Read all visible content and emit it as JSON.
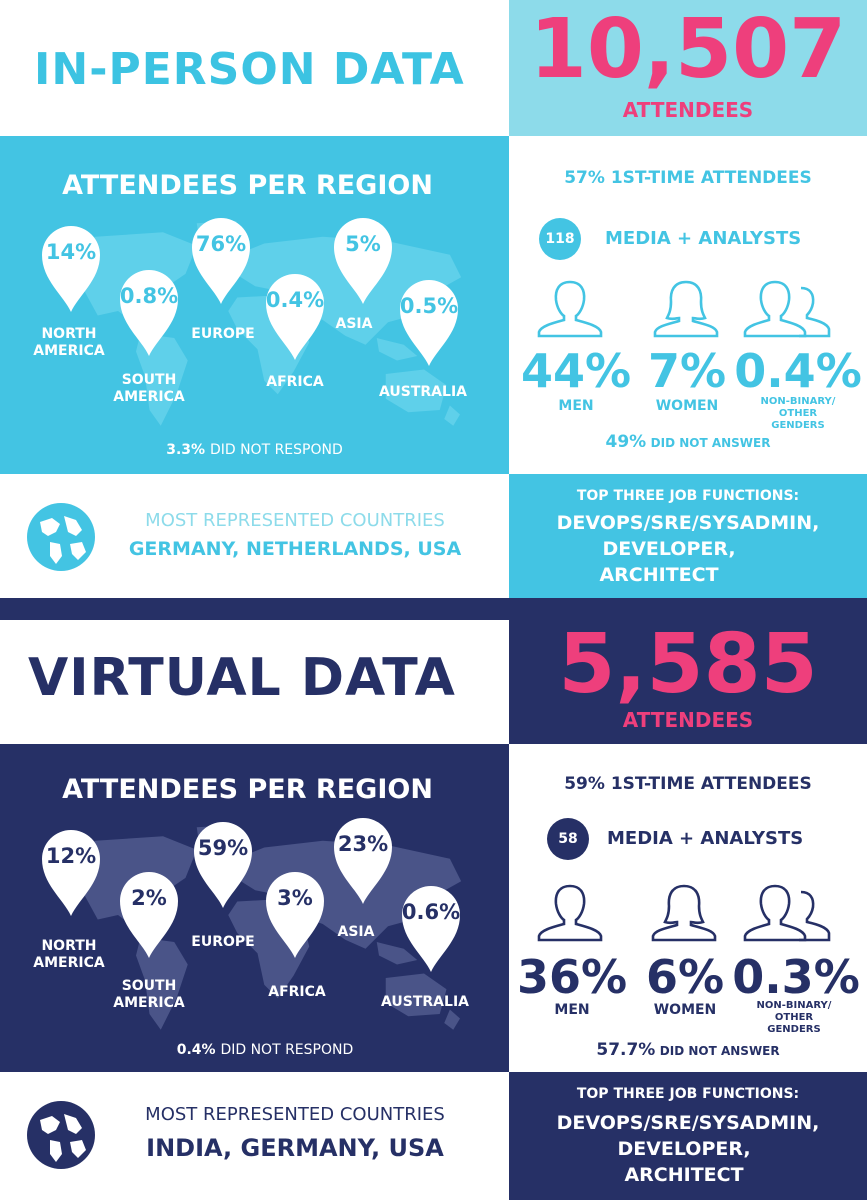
{
  "in_person": {
    "title": "IN-PERSON DATA",
    "total": "10,507",
    "total_label": "ATTENDEES",
    "region_title": "ATTENDEES PER REGION",
    "regions": [
      {
        "pct": "14%",
        "name": "NORTH AMERICA"
      },
      {
        "pct": "0.8%",
        "name": "SOUTH AMERICA"
      },
      {
        "pct": "76%",
        "name": "EUROPE"
      },
      {
        "pct": "0.4%",
        "name": "AFRICA"
      },
      {
        "pct": "5%",
        "name": "ASIA"
      },
      {
        "pct": "0.5%",
        "name": "AUSTRALIA"
      }
    ],
    "no_response_pct": "3.3%",
    "no_response_text": "DID NOT RESPOND",
    "first_time": "57% 1ST-TIME ATTENDEES",
    "media_count": "118",
    "media_label": "MEDIA + ANALYSTS",
    "genders": [
      {
        "pct": "44%",
        "label": "MEN"
      },
      {
        "pct": "7%",
        "label": "WOMEN"
      },
      {
        "pct": "0.4%",
        "label": "NON-BINARY/ OTHER GENDERS"
      }
    ],
    "no_answer_pct": "49%",
    "no_answer_text": "DID NOT ANSWER",
    "countries_heading": "MOST REPRESENTED COUNTRIES",
    "countries": "GERMANY, NETHERLANDS, USA",
    "jobs_heading": "TOP THREE JOB FUNCTIONS:",
    "jobs": [
      "DEVOPS/SRE/SYSADMIN,",
      "DEVELOPER,",
      "ARCHITECT"
    ]
  },
  "virtual": {
    "title": "VIRTUAL DATA",
    "total": "5,585",
    "total_label": "ATTENDEES",
    "region_title": "ATTENDEES PER REGION",
    "regions": [
      {
        "pct": "12%",
        "name": "NORTH AMERICA"
      },
      {
        "pct": "2%",
        "name": "SOUTH AMERICA"
      },
      {
        "pct": "59%",
        "name": "EUROPE"
      },
      {
        "pct": "3%",
        "name": "AFRICA"
      },
      {
        "pct": "23%",
        "name": "ASIA"
      },
      {
        "pct": "0.6%",
        "name": "AUSTRALIA"
      }
    ],
    "no_response_pct": "0.4%",
    "no_response_text": "DID NOT RESPOND",
    "first_time": "59% 1ST-TIME ATTENDEES",
    "media_count": "58",
    "media_label": "MEDIA + ANALYSTS",
    "genders": [
      {
        "pct": "36%",
        "label": "MEN"
      },
      {
        "pct": "6%",
        "label": "WOMEN"
      },
      {
        "pct": "0.3%",
        "label": "NON-BINARY/ OTHER GENDERS"
      }
    ],
    "no_answer_pct": "57.7%",
    "no_answer_text": "DID NOT ANSWER",
    "countries_heading": "MOST REPRESENTED COUNTRIES",
    "countries": "INDIA, GERMANY, USA",
    "jobs_heading": "TOP THREE JOB FUNCTIONS:",
    "jobs": [
      "DEVOPS/SRE/SYSADMIN,",
      "DEVELOPER,",
      "ARCHITECT"
    ]
  },
  "colors": {
    "cyan": "#43c4e3",
    "light_cyan": "#8ddbea",
    "navy": "#263066",
    "pink": "#ee3f7c"
  }
}
